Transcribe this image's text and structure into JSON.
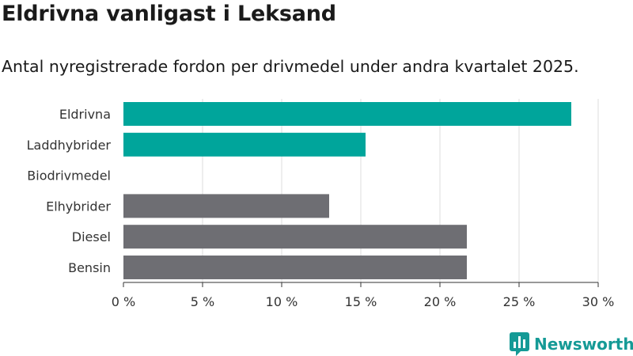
{
  "title": "Eldrivna vanligast i Leksand",
  "subtitle": "Antal nyregistrerade fordon per drivmedel under andra kvartalet 2025.",
  "brand": {
    "name": "Newsworthy",
    "color": "#159a96"
  },
  "colors": {
    "highlight": "#00a59b",
    "other": "#6e6e73",
    "grid": "#dcdcdc"
  },
  "chart_data": {
    "type": "bar",
    "orientation": "horizontal",
    "title": "Eldrivna vanligast i Leksand",
    "subtitle": "Antal nyregistrerade fordon per drivmedel under andra kvartalet 2025.",
    "categories": [
      "Eldrivna",
      "Laddhybrider",
      "Biodrivmedel",
      "Elhybrider",
      "Diesel",
      "Bensin"
    ],
    "values": [
      28.3,
      15.3,
      0,
      13.0,
      21.7,
      21.7
    ],
    "bar_colors": [
      "#00a59b",
      "#00a59b",
      "#00a59b",
      "#6e6e73",
      "#6e6e73",
      "#6e6e73"
    ],
    "x_ticks": [
      0,
      5,
      10,
      15,
      20,
      25,
      30
    ],
    "x_tick_labels": [
      "0 %",
      "5 %",
      "10 %",
      "15 %",
      "20 %",
      "25 %",
      "30 %"
    ],
    "xlim": [
      0,
      30
    ],
    "unit": "%",
    "grid": "vertical",
    "legend": "none"
  }
}
